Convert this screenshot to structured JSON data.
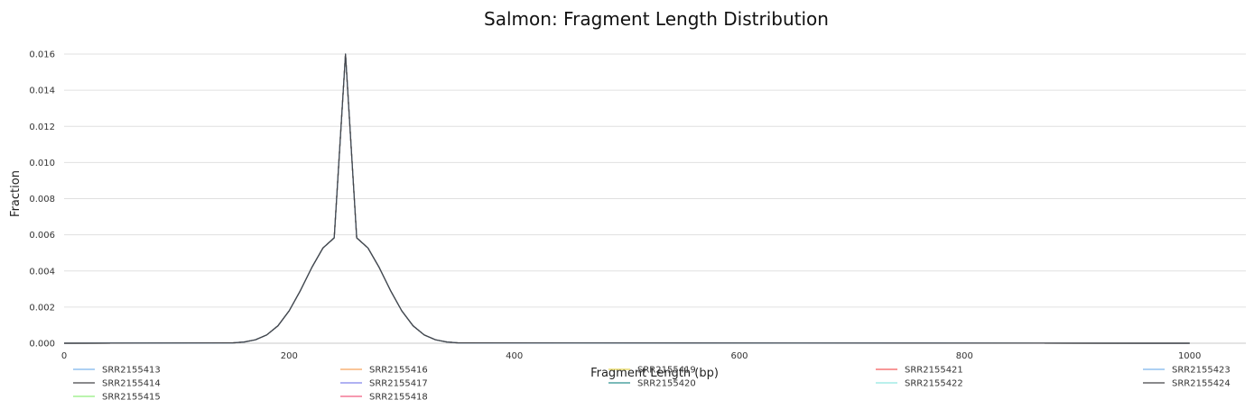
{
  "chart_data": {
    "type": "line",
    "title": "Salmon: Fragment Length Distribution",
    "xlabel": "Fragment Length (bp)",
    "ylabel": "Fraction",
    "xlim": [
      0,
      1050
    ],
    "ylim": [
      0,
      0.016
    ],
    "x_ticks": [
      "0",
      "200",
      "400",
      "600",
      "800",
      "1000"
    ],
    "x_tick_values": [
      0,
      200,
      400,
      600,
      800,
      1000
    ],
    "y_ticks": [
      "0.000",
      "0.002",
      "0.004",
      "0.006",
      "0.008",
      "0.010",
      "0.012",
      "0.014",
      "0.016"
    ],
    "y_tick_values": [
      0,
      0.002,
      0.004,
      0.006,
      0.008,
      0.01,
      0.012,
      0.014,
      0.016
    ],
    "grid": "horizontal",
    "legend_position": "bottom",
    "x": [
      0,
      150,
      160,
      170,
      180,
      190,
      200,
      210,
      220,
      230,
      240,
      250,
      260,
      270,
      280,
      290,
      300,
      310,
      320,
      330,
      340,
      350,
      1000
    ],
    "series": [
      {
        "name": "SRR2155413",
        "color": "#7cb5ec",
        "values": [
          0,
          2.2e-05,
          7e-05,
          0.000191,
          0.000459,
          0.000969,
          0.001795,
          0.002923,
          0.004184,
          0.005271,
          0.005833,
          0.016,
          0.005833,
          0.005271,
          0.004184,
          0.002923,
          0.001795,
          0.000969,
          0.000459,
          0.000191,
          7e-05,
          2.2e-05,
          0
        ]
      },
      {
        "name": "SRR2155414",
        "color": "#434348",
        "values": [
          0,
          2.2e-05,
          7e-05,
          0.000191,
          0.000459,
          0.000969,
          0.001795,
          0.002923,
          0.004184,
          0.005271,
          0.005833,
          0.016,
          0.005833,
          0.005271,
          0.004184,
          0.002923,
          0.001795,
          0.000969,
          0.000459,
          0.000191,
          7e-05,
          2.2e-05,
          0
        ]
      },
      {
        "name": "SRR2155415",
        "color": "#90ed7d",
        "values": [
          0,
          2.2e-05,
          7e-05,
          0.000191,
          0.000459,
          0.000969,
          0.001795,
          0.002923,
          0.004184,
          0.005271,
          0.005833,
          0.016,
          0.005833,
          0.005271,
          0.004184,
          0.002923,
          0.001795,
          0.000969,
          0.000459,
          0.000191,
          7e-05,
          2.2e-05,
          0
        ]
      },
      {
        "name": "SRR2155416",
        "color": "#f7a35c",
        "values": [
          0,
          2.2e-05,
          7e-05,
          0.000191,
          0.000459,
          0.000969,
          0.001795,
          0.002923,
          0.004184,
          0.005271,
          0.005833,
          0.016,
          0.005833,
          0.005271,
          0.004184,
          0.002923,
          0.001795,
          0.000969,
          0.000459,
          0.000191,
          7e-05,
          2.2e-05,
          0
        ]
      },
      {
        "name": "SRR2155417",
        "color": "#8085e9",
        "values": [
          0,
          2.2e-05,
          7e-05,
          0.000191,
          0.000459,
          0.000969,
          0.001795,
          0.002923,
          0.004184,
          0.005271,
          0.005833,
          0.016,
          0.005833,
          0.005271,
          0.004184,
          0.002923,
          0.001795,
          0.000969,
          0.000459,
          0.000191,
          7e-05,
          2.2e-05,
          0
        ]
      },
      {
        "name": "SRR2155418",
        "color": "#f15c80",
        "values": [
          0,
          2.2e-05,
          7e-05,
          0.000191,
          0.000459,
          0.000969,
          0.001795,
          0.002923,
          0.004184,
          0.005271,
          0.005833,
          0.016,
          0.005833,
          0.005271,
          0.004184,
          0.002923,
          0.001795,
          0.000969,
          0.000459,
          0.000191,
          7e-05,
          2.2e-05,
          0
        ]
      },
      {
        "name": "SRR2155419",
        "color": "#e4d354",
        "values": [
          0,
          2.2e-05,
          7e-05,
          0.000191,
          0.000459,
          0.000969,
          0.001795,
          0.002923,
          0.004184,
          0.005271,
          0.005833,
          0.016,
          0.005833,
          0.005271,
          0.004184,
          0.002923,
          0.001795,
          0.000969,
          0.000459,
          0.000191,
          7e-05,
          2.2e-05,
          0
        ]
      },
      {
        "name": "SRR2155420",
        "color": "#2b908f",
        "values": [
          0,
          2.2e-05,
          7e-05,
          0.000191,
          0.000459,
          0.000969,
          0.001795,
          0.002923,
          0.004184,
          0.005271,
          0.005833,
          0.016,
          0.005833,
          0.005271,
          0.004184,
          0.002923,
          0.001795,
          0.000969,
          0.000459,
          0.000191,
          7e-05,
          2.2e-05,
          0
        ]
      },
      {
        "name": "SRR2155421",
        "color": "#f45b5b",
        "values": [
          0,
          2.2e-05,
          7e-05,
          0.000191,
          0.000459,
          0.000969,
          0.001795,
          0.002923,
          0.004184,
          0.005271,
          0.005833,
          0.016,
          0.005833,
          0.005271,
          0.004184,
          0.002923,
          0.001795,
          0.000969,
          0.000459,
          0.000191,
          7e-05,
          2.2e-05,
          0
        ]
      },
      {
        "name": "SRR2155422",
        "color": "#91e8e1",
        "values": [
          0,
          2.2e-05,
          7e-05,
          0.000191,
          0.000459,
          0.000969,
          0.001795,
          0.002923,
          0.004184,
          0.005271,
          0.005833,
          0.016,
          0.005833,
          0.005271,
          0.004184,
          0.002923,
          0.001795,
          0.000969,
          0.000459,
          0.000191,
          7e-05,
          2.2e-05,
          0
        ]
      },
      {
        "name": "SRR2155423",
        "color": "#7cb5ec",
        "values": [
          0,
          2.2e-05,
          7e-05,
          0.000191,
          0.000459,
          0.000969,
          0.001795,
          0.002923,
          0.004184,
          0.005271,
          0.005833,
          0.016,
          0.005833,
          0.005271,
          0.004184,
          0.002923,
          0.001795,
          0.000969,
          0.000459,
          0.000191,
          7e-05,
          2.2e-05,
          0
        ]
      },
      {
        "name": "SRR2155424",
        "color": "#434348",
        "values": [
          0,
          2.2e-05,
          7e-05,
          0.000191,
          0.000459,
          0.000969,
          0.001795,
          0.002923,
          0.004184,
          0.005271,
          0.005833,
          0.016,
          0.005833,
          0.005271,
          0.004184,
          0.002923,
          0.001795,
          0.000969,
          0.000459,
          0.000191,
          7e-05,
          2.2e-05,
          0
        ]
      }
    ]
  }
}
